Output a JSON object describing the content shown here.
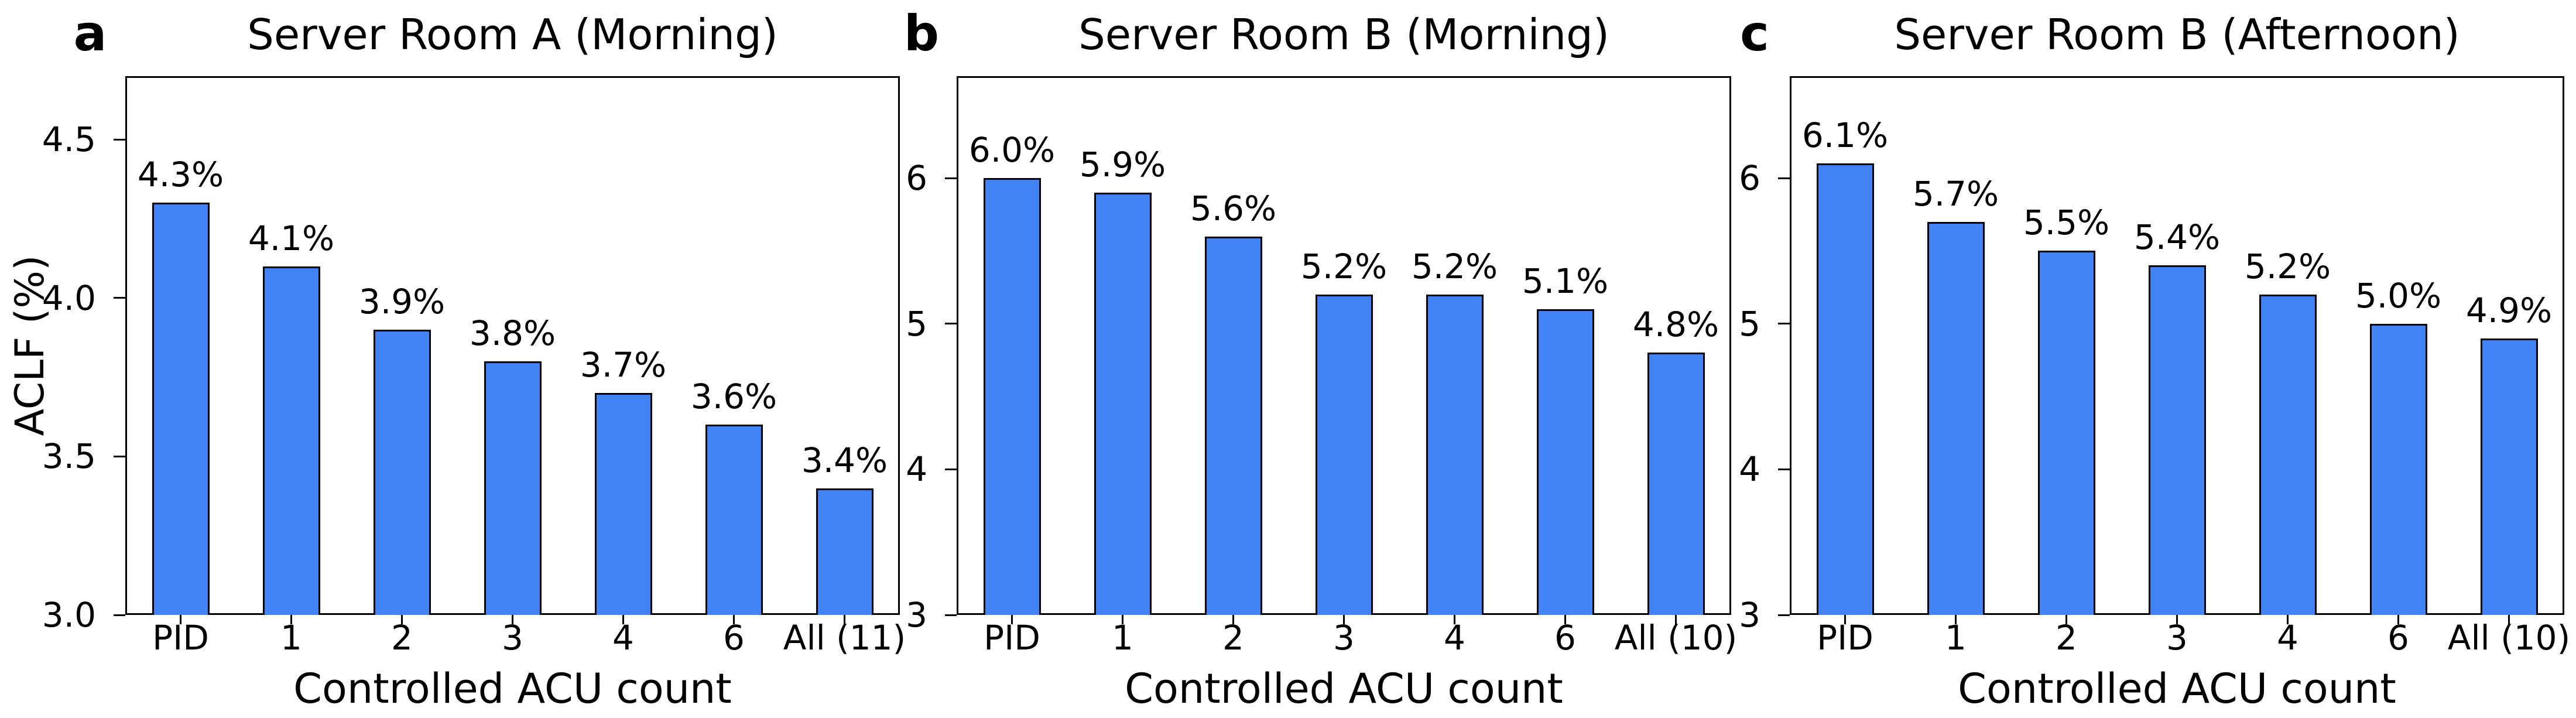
{
  "figure": {
    "background": "#ffffff",
    "bar_color": "#4183f4",
    "bar_edge_color": "#000000",
    "axis_color": "#000000",
    "text_color": "#000000"
  },
  "chart_data": [
    {
      "type": "bar",
      "panel_label": "a",
      "title": "Server Room A (Morning)",
      "xlabel": "Controlled ACU count",
      "ylabel": "ACLF (%)",
      "categories": [
        "PID",
        "1",
        "2",
        "3",
        "4",
        "6",
        "All (11)"
      ],
      "values": [
        4.3,
        4.1,
        3.9,
        3.8,
        3.7,
        3.6,
        3.4
      ],
      "bar_labels": [
        "4.3%",
        "4.1%",
        "3.9%",
        "3.8%",
        "3.7%",
        "3.6%",
        "3.4%"
      ],
      "ylim": [
        3.0,
        4.7
      ],
      "yticks": [
        3.0,
        3.5,
        4.0,
        4.5
      ],
      "ytick_labels": [
        "3.0",
        "3.5",
        "4.0",
        "4.5"
      ],
      "grid": false,
      "legend": null
    },
    {
      "type": "bar",
      "panel_label": "b",
      "title": "Server Room B (Morning)",
      "xlabel": "Controlled ACU count",
      "ylabel": "",
      "categories": [
        "PID",
        "1",
        "2",
        "3",
        "4",
        "6",
        "All (10)"
      ],
      "values": [
        6.0,
        5.9,
        5.6,
        5.2,
        5.2,
        5.1,
        4.8
      ],
      "bar_labels": [
        "6.0%",
        "5.9%",
        "5.6%",
        "5.2%",
        "5.2%",
        "5.1%",
        "4.8%"
      ],
      "ylim": [
        3.0,
        6.7
      ],
      "yticks": [
        3,
        4,
        5,
        6
      ],
      "ytick_labels": [
        "3",
        "4",
        "5",
        "6"
      ],
      "grid": false,
      "legend": null
    },
    {
      "type": "bar",
      "panel_label": "c",
      "title": "Server Room B (Afternoon)",
      "xlabel": "Controlled ACU count",
      "ylabel": "",
      "categories": [
        "PID",
        "1",
        "2",
        "3",
        "4",
        "6",
        "All (10)"
      ],
      "values": [
        6.1,
        5.7,
        5.5,
        5.4,
        5.2,
        5.0,
        4.9
      ],
      "bar_labels": [
        "6.1%",
        "5.7%",
        "5.5%",
        "5.4%",
        "5.2%",
        "5.0%",
        "4.9%"
      ],
      "ylim": [
        3.0,
        6.7
      ],
      "yticks": [
        3,
        4,
        5,
        6
      ],
      "ytick_labels": [
        "3",
        "4",
        "5",
        "6"
      ],
      "grid": false,
      "legend": null
    }
  ]
}
